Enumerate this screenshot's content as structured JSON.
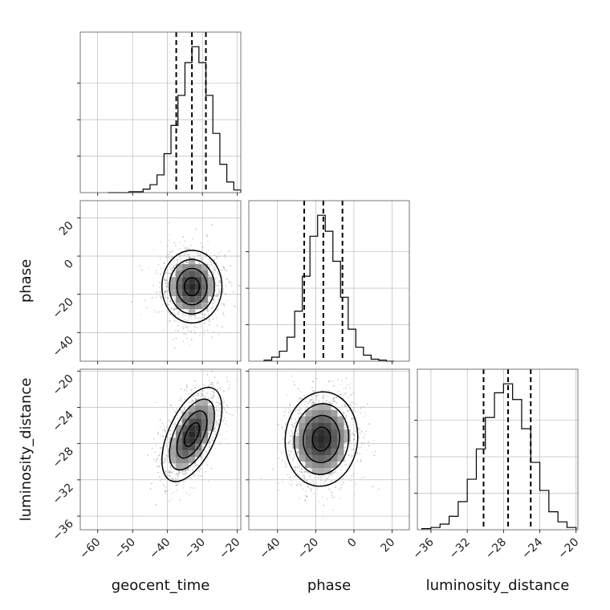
{
  "chart_data": {
    "type": "corner",
    "parameters": [
      {
        "label": "geocent_time",
        "range": [
          -65,
          -19
        ],
        "ticks": [
          -60,
          -50,
          -40,
          -30,
          -20
        ],
        "tick_labels": [
          "−60",
          "−50",
          "−40",
          "−30",
          "−20"
        ],
        "mean": -33,
        "std": 4.3,
        "quantiles": [
          -37.5,
          -33.0,
          -29.0
        ]
      },
      {
        "label": "phase",
        "range": [
          -55,
          29
        ],
        "ticks": [
          -40,
          -20,
          0,
          20
        ],
        "tick_labels": [
          "−40",
          "−20",
          "0",
          "20"
        ],
        "mean": -16,
        "std": 9.5,
        "quantiles": [
          -26.0,
          -16.0,
          -6.0
        ]
      },
      {
        "label": "luminosity_distance",
        "range": [
          -37.5,
          -19.8
        ],
        "ticks": [
          -36,
          -32,
          -28,
          -24,
          -20
        ],
        "tick_labels": [
          "−36",
          "−32",
          "−28",
          "−24",
          "−20"
        ],
        "mean": -27.5,
        "std": 2.6,
        "quantiles": [
          -30.2,
          -27.5,
          -25.0
        ]
      }
    ],
    "histograms": [
      {
        "parameter": "geocent_time",
        "bin_edges": [
          -57,
          -55,
          -53,
          -51,
          -49,
          -47,
          -45,
          -43,
          -41,
          -39,
          -37,
          -35,
          -33,
          -31,
          -29,
          -27,
          -25,
          -23,
          -21,
          -19
        ],
        "counts": [
          0,
          0,
          0,
          1,
          1,
          4,
          9,
          20,
          44,
          76,
          110,
          147,
          165,
          147,
          110,
          67,
          32,
          12,
          3
        ]
      },
      {
        "parameter": "phase",
        "bin_edges": [
          -47,
          -43,
          -39,
          -35,
          -31,
          -27,
          -23,
          -19,
          -15,
          -11,
          -7,
          -3,
          1,
          5,
          9,
          13,
          17,
          21
        ],
        "counts": [
          1,
          4,
          10,
          24,
          50,
          85,
          125,
          146,
          130,
          100,
          64,
          32,
          14,
          6,
          2,
          1,
          0
        ]
      },
      {
        "parameter": "luminosity_distance",
        "bin_edges": [
          -37,
          -36,
          -35,
          -34,
          -33,
          -32,
          -31,
          -30,
          -29,
          -28,
          -27,
          -26,
          -25,
          -24,
          -23,
          -22,
          -21,
          -20
        ],
        "counts": [
          1,
          2,
          5,
          12,
          25,
          45,
          72,
          100,
          122,
          130,
          116,
          90,
          60,
          35,
          16,
          7,
          2
        ]
      }
    ],
    "correlations": [
      {
        "x": "geocent_time",
        "y": "phase",
        "rho": 0.0,
        "center": [
          -33,
          -16
        ]
      },
      {
        "x": "geocent_time",
        "y": "luminosity_distance",
        "rho": 0.55,
        "center": [
          -33,
          -27
        ]
      },
      {
        "x": "phase",
        "y": "luminosity_distance",
        "rho": 0.05,
        "center": [
          -17,
          -27.5
        ]
      }
    ],
    "contour_levels_sigma": [
      0.5,
      1.0,
      1.5,
      2.0
    ],
    "grid": true
  }
}
